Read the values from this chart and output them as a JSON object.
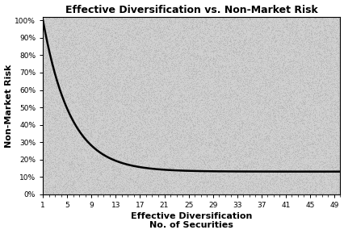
{
  "title": "Effective Diversification vs. Non-Market Risk",
  "xlabel_line1": "Effective Diversification",
  "xlabel_line2": "No. of Securities",
  "ylabel": "Non-Market Risk",
  "xticks": [
    1,
    5,
    9,
    13,
    17,
    21,
    25,
    29,
    33,
    37,
    41,
    45,
    49
  ],
  "yticks": [
    0,
    10,
    20,
    30,
    40,
    50,
    60,
    70,
    80,
    90,
    100
  ],
  "ylim": [
    0,
    102
  ],
  "xlim": [
    1,
    50
  ],
  "curve_color": "#000000",
  "curve_linewidth": 1.8,
  "bg_color": "#c8c8c8",
  "fig_bg_color": "#ffffff",
  "title_fontsize": 9,
  "axis_label_fontsize": 8,
  "tick_fontsize": 6.5,
  "asymptote": 13.0,
  "scale": 87.0,
  "decay": 0.22
}
